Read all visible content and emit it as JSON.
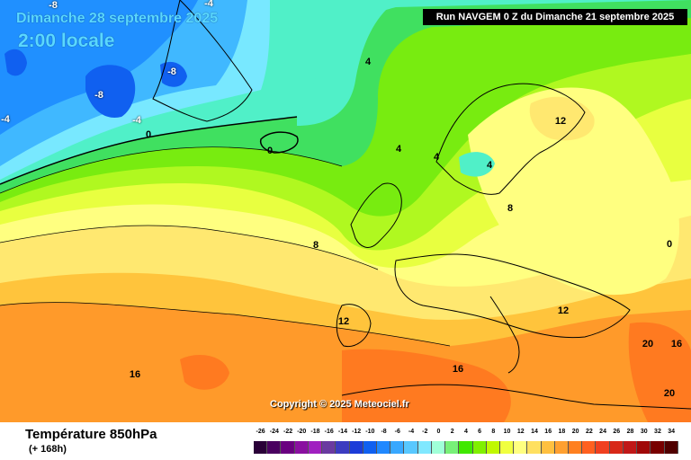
{
  "title": {
    "date": "Dimanche 28 septembre 2025",
    "time": "2:00 locale"
  },
  "run_info": "Run NAVGEM 0 Z du Dimanche 21 septembre 2025",
  "copyright": "Copyright © 2025 Meteociel.fr",
  "parameter": {
    "name": "Température 850hPa",
    "lead": "(+ 168h)"
  },
  "contour_labels": [
    "-8",
    "-4",
    "-8",
    "-8",
    "-4",
    "0",
    "0",
    "-4",
    "4",
    "4",
    "4",
    "4",
    "12",
    "8",
    "8",
    "12",
    "12",
    "16",
    "20",
    "16",
    "20",
    "16",
    "0"
  ],
  "color_scale": {
    "labels": [
      "-26",
      "-24",
      "-22",
      "-20",
      "-18",
      "-16",
      "-14",
      "-12",
      "-10",
      "-8",
      "-6",
      "-4",
      "-2",
      "0",
      "2",
      "4",
      "6",
      "8",
      "10",
      "12",
      "14",
      "16",
      "18",
      "20",
      "22",
      "24",
      "26",
      "28",
      "30",
      "32",
      "34"
    ],
    "colors": [
      "#2a0038",
      "#4a0060",
      "#6a0080",
      "#8a10a0",
      "#a020c0",
      "#6a3aa0",
      "#3c3cc0",
      "#1c3cd8",
      "#1060f0",
      "#2088ff",
      "#38a8ff",
      "#58c8ff",
      "#80e8ff",
      "#a0ffd8",
      "#78f078",
      "#40e800",
      "#80f000",
      "#c0f800",
      "#f0ff40",
      "#ffff80",
      "#ffe060",
      "#ffc040",
      "#ffa030",
      "#ff8020",
      "#ff6020",
      "#f04020",
      "#d82818",
      "#c01818",
      "#a00808",
      "#780000",
      "#500000"
    ]
  }
}
